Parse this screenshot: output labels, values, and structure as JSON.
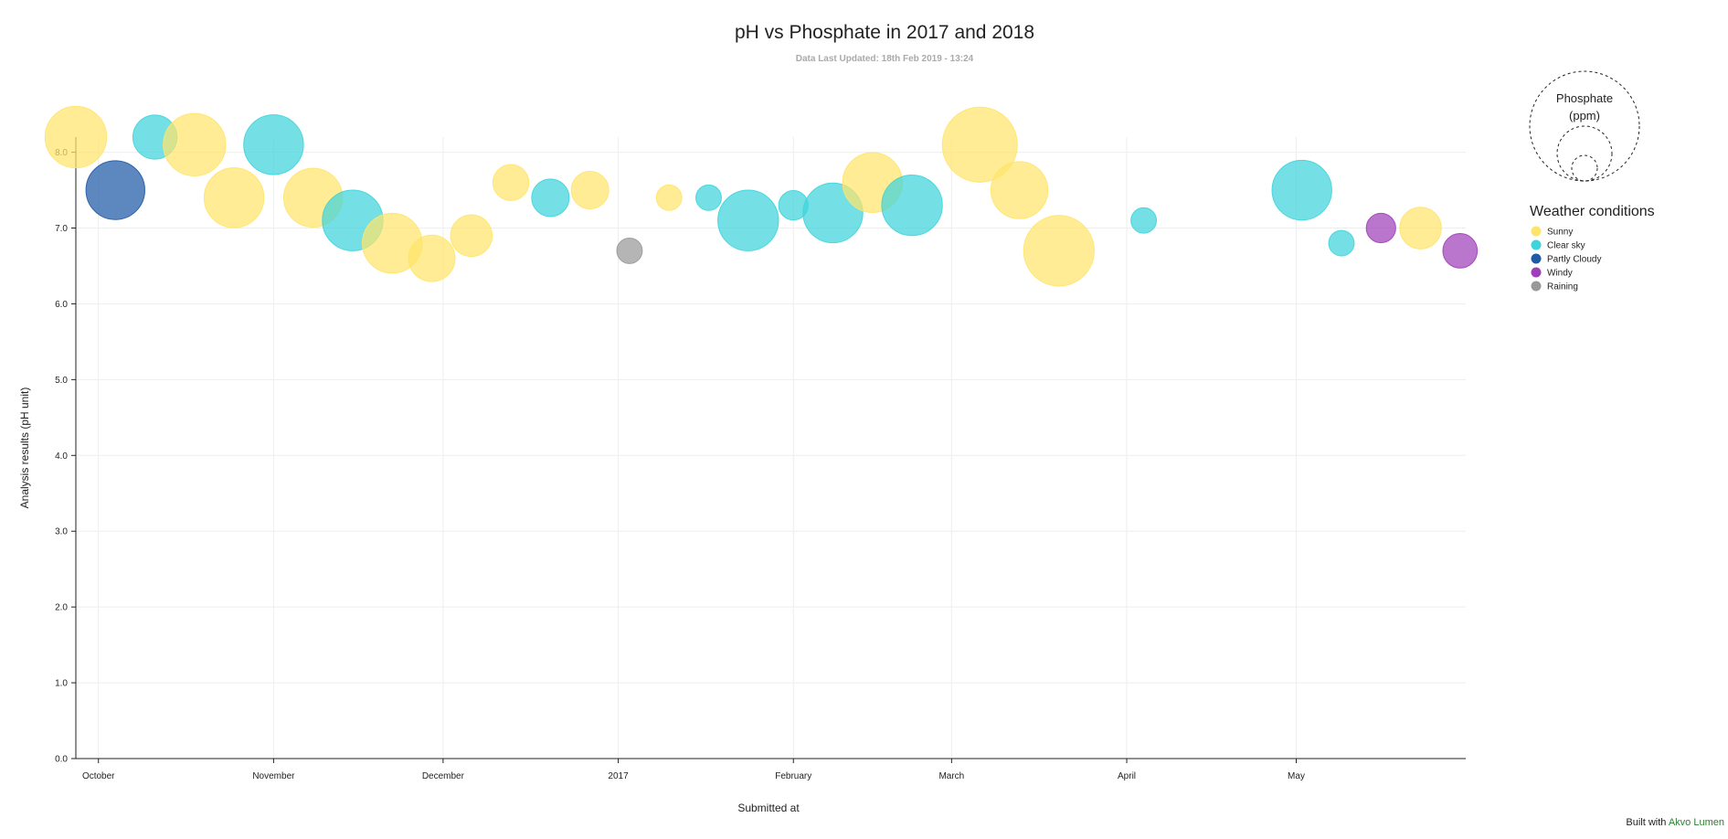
{
  "chart_data": {
    "type": "scatter",
    "title": "pH vs Phosphate in 2017 and 2018",
    "subtitle": "Data Last Updated: 18th Feb 2019 - 13:24",
    "xlabel": "Submitted at",
    "ylabel": "Analysis results (pH unit)",
    "ylim": [
      0,
      8.2
    ],
    "y_ticks": [
      "0.0",
      "1.0",
      "2.0",
      "3.0",
      "4.0",
      "5.0",
      "6.0",
      "7.0",
      "8.0"
    ],
    "x_range": [
      "2016-09-27",
      "2017-05-31"
    ],
    "x_ticks": [
      {
        "date": "2016-10-01",
        "label": "October"
      },
      {
        "date": "2016-11-01",
        "label": "November"
      },
      {
        "date": "2016-12-01",
        "label": "December"
      },
      {
        "date": "2017-01-01",
        "label": "2017"
      },
      {
        "date": "2017-02-01",
        "label": "February"
      },
      {
        "date": "2017-03-01",
        "label": "March"
      },
      {
        "date": "2017-04-01",
        "label": "April"
      },
      {
        "date": "2017-05-01",
        "label": "May"
      }
    ],
    "grid": true,
    "size_legend_title": "Phosphate (ppm)",
    "color_legend_title": "Weather conditions",
    "categories": [
      {
        "name": "Sunny",
        "color": "#ffe46b"
      },
      {
        "name": "Clear sky",
        "color": "#3fd4dc"
      },
      {
        "name": "Partly Cloudy",
        "color": "#1f5aa6"
      },
      {
        "name": "Windy",
        "color": "#a040b8"
      },
      {
        "name": "Raining",
        "color": "#999999"
      }
    ],
    "points": [
      {
        "date": "2016-09-27",
        "y": 8.2,
        "size": 3.5,
        "category": "Sunny"
      },
      {
        "date": "2016-10-04",
        "y": 7.5,
        "size": 3.2,
        "category": "Partly Cloudy"
      },
      {
        "date": "2016-10-11",
        "y": 8.2,
        "size": 1.8,
        "category": "Clear sky"
      },
      {
        "date": "2016-10-18",
        "y": 8.1,
        "size": 3.6,
        "category": "Sunny"
      },
      {
        "date": "2016-10-25",
        "y": 7.4,
        "size": 3.3,
        "category": "Sunny"
      },
      {
        "date": "2016-11-01",
        "y": 8.1,
        "size": 3.3,
        "category": "Clear sky"
      },
      {
        "date": "2016-11-08",
        "y": 7.4,
        "size": 3.2,
        "category": "Sunny"
      },
      {
        "date": "2016-11-15",
        "y": 7.1,
        "size": 3.4,
        "category": "Clear sky"
      },
      {
        "date": "2016-11-22",
        "y": 6.8,
        "size": 3.3,
        "category": "Sunny"
      },
      {
        "date": "2016-11-29",
        "y": 6.6,
        "size": 2.0,
        "category": "Sunny"
      },
      {
        "date": "2016-12-06",
        "y": 6.9,
        "size": 1.6,
        "category": "Sunny"
      },
      {
        "date": "2016-12-13",
        "y": 7.6,
        "size": 1.2,
        "category": "Sunny"
      },
      {
        "date": "2016-12-20",
        "y": 7.4,
        "size": 1.3,
        "category": "Clear sky"
      },
      {
        "date": "2016-12-27",
        "y": 7.5,
        "size": 1.3,
        "category": "Sunny"
      },
      {
        "date": "2017-01-03",
        "y": 6.7,
        "size": 0.6,
        "category": "Raining"
      },
      {
        "date": "2017-01-10",
        "y": 7.4,
        "size": 0.6,
        "category": "Sunny"
      },
      {
        "date": "2017-01-17",
        "y": 7.4,
        "size": 0.6,
        "category": "Clear sky"
      },
      {
        "date": "2017-01-24",
        "y": 7.1,
        "size": 3.4,
        "category": "Clear sky"
      },
      {
        "date": "2017-02-01",
        "y": 7.3,
        "size": 0.8,
        "category": "Clear sky"
      },
      {
        "date": "2017-02-08",
        "y": 7.2,
        "size": 3.3,
        "category": "Clear sky"
      },
      {
        "date": "2017-02-15",
        "y": 7.6,
        "size": 3.3,
        "category": "Sunny"
      },
      {
        "date": "2017-02-22",
        "y": 7.3,
        "size": 3.4,
        "category": "Clear sky"
      },
      {
        "date": "2017-03-06",
        "y": 8.1,
        "size": 5.2,
        "category": "Sunny"
      },
      {
        "date": "2017-03-13",
        "y": 7.5,
        "size": 3.0,
        "category": "Sunny"
      },
      {
        "date": "2017-03-20",
        "y": 6.7,
        "size": 4.6,
        "category": "Sunny"
      },
      {
        "date": "2017-04-04",
        "y": 7.1,
        "size": 0.6,
        "category": "Clear sky"
      },
      {
        "date": "2017-05-02",
        "y": 7.5,
        "size": 3.3,
        "category": "Clear sky"
      },
      {
        "date": "2017-05-09",
        "y": 6.8,
        "size": 0.6,
        "category": "Clear sky"
      },
      {
        "date": "2017-05-16",
        "y": 7.0,
        "size": 0.8,
        "category": "Windy"
      },
      {
        "date": "2017-05-23",
        "y": 7.0,
        "size": 1.6,
        "category": "Sunny"
      },
      {
        "date": "2017-05-30",
        "y": 6.7,
        "size": 1.1,
        "category": "Windy"
      }
    ]
  },
  "footer": {
    "prefix": "Built with",
    "link": "Akvo Lumen"
  }
}
